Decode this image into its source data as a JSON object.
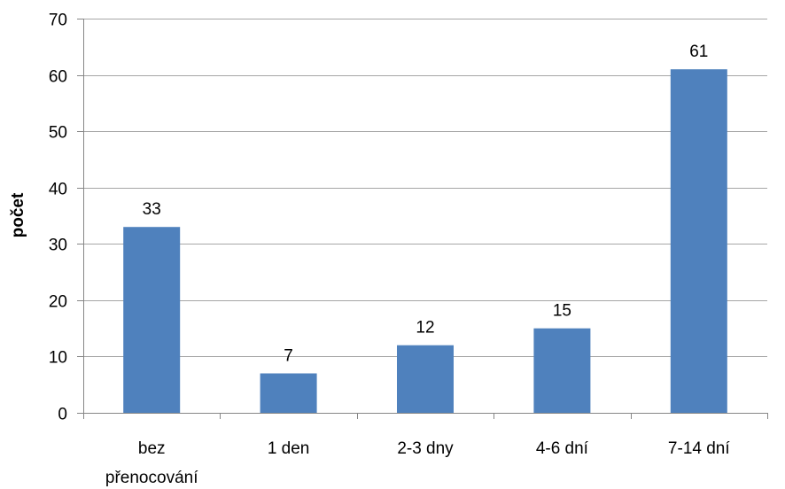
{
  "chart_data": {
    "type": "bar",
    "categories": [
      "bez přenocování",
      "1 den",
      "2-3 dny",
      "4-6 dní",
      "7-14 dní"
    ],
    "category_lines": [
      [
        "bez",
        "přenocování"
      ],
      [
        "1 den"
      ],
      [
        "2-3 dny"
      ],
      [
        "4-6 dní"
      ],
      [
        "7-14 dní"
      ]
    ],
    "values": [
      33,
      7,
      12,
      15,
      61
    ],
    "data_labels": [
      "33",
      "7",
      "12",
      "15",
      "61"
    ],
    "ylabel": "počet",
    "xlabel": "",
    "title": "",
    "ylim": [
      0,
      70
    ],
    "yticks": [
      0,
      10,
      20,
      30,
      40,
      50,
      60,
      70
    ],
    "grid": true,
    "legend": "none",
    "bar_color": "#4F81BD",
    "grid_color": "#A6A6A6"
  }
}
